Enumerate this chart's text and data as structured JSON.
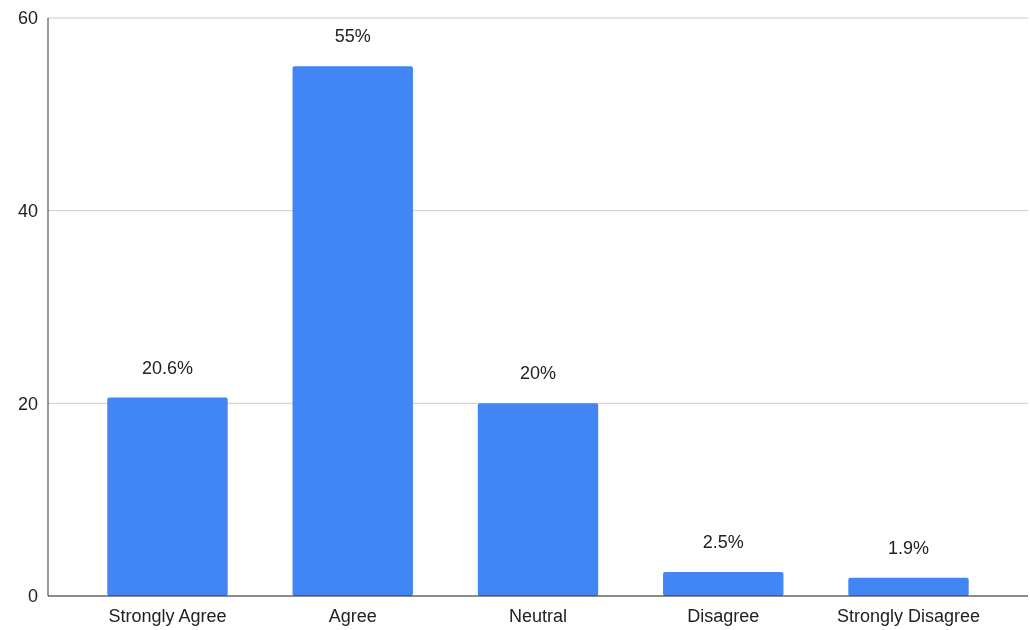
{
  "chart_data": {
    "type": "bar",
    "categories": [
      "Strongly Agree",
      "Agree",
      "Neutral",
      "Disagree",
      "Strongly Disagree"
    ],
    "values": [
      20.6,
      55,
      20,
      2.5,
      1.9
    ],
    "value_labels": [
      "20.6%",
      "55%",
      "20%",
      "2.5%",
      "1.9%"
    ],
    "color": "#4285f4",
    "ylim": [
      0,
      60
    ],
    "yticks": [
      0,
      20,
      40,
      60
    ],
    "grid": "y"
  }
}
